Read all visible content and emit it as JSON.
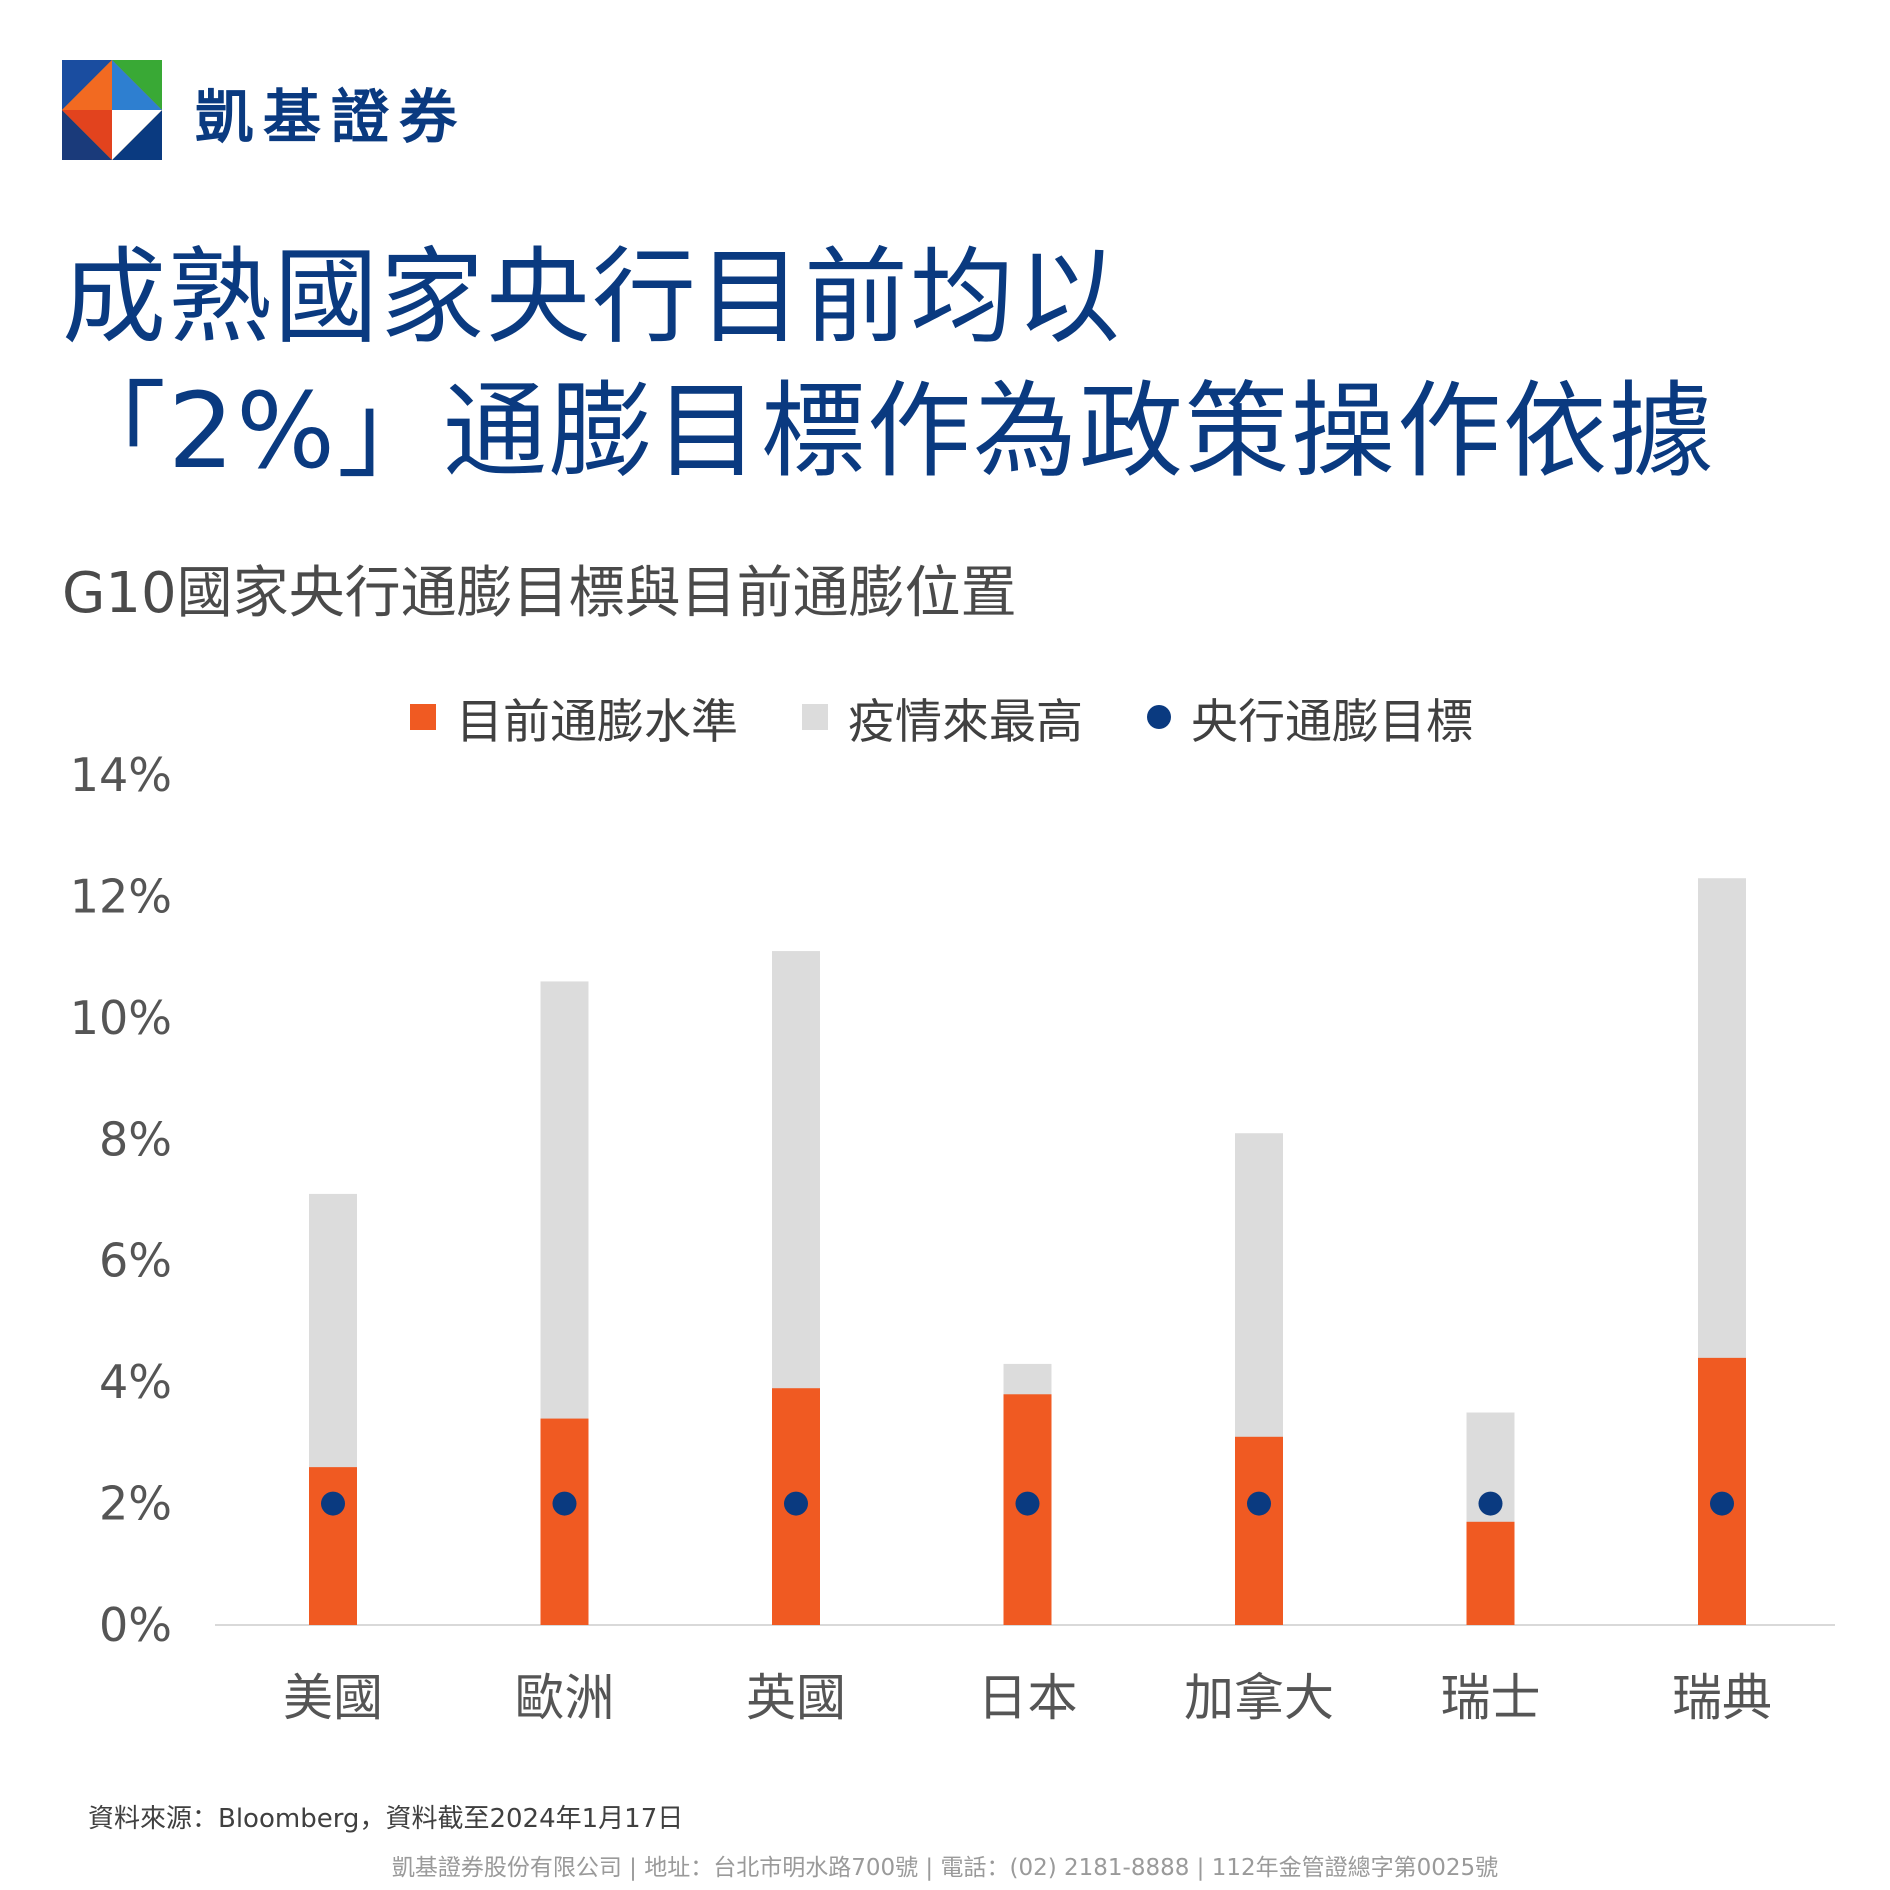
{
  "brand": {
    "logo_icon": "kgi-diamond-logo-icon",
    "name": "凱基證券"
  },
  "title": {
    "line1": "成熟國家央行目前均以",
    "line2": "「2%」通膨目標作為政策操作依據"
  },
  "colors": {
    "title": "#0a3a80",
    "current": "#f05a22",
    "peak": "#dcdcdc",
    "target": "#0a3a80"
  },
  "chart_data": {
    "type": "bar",
    "title": "G10國家央行通膨目標與目前通膨位置",
    "categories": [
      "美國",
      "歐洲",
      "英國",
      "日本",
      "加拿大",
      "瑞士",
      "瑞典"
    ],
    "series": [
      {
        "name": "目前通膨水準",
        "kind": "bar",
        "color": "#f05a22",
        "values": [
          2.6,
          3.4,
          3.9,
          3.8,
          3.1,
          1.7,
          4.4
        ]
      },
      {
        "name": "疫情來最高",
        "kind": "bar",
        "color": "#dcdcdc",
        "values": [
          7.1,
          10.6,
          11.1,
          4.3,
          8.1,
          3.5,
          12.3
        ]
      },
      {
        "name": "央行通膨目標",
        "kind": "dot",
        "color": "#0a3a80",
        "values": [
          2,
          2,
          2,
          2,
          2,
          2,
          2
        ]
      }
    ],
    "yticks": [
      "0%",
      "2%",
      "4%",
      "6%",
      "8%",
      "10%",
      "12%",
      "14%"
    ],
    "ylim": [
      0,
      14
    ],
    "grid": false,
    "legend_position": "top"
  },
  "source": "資料來源：Bloomberg，資料截至2024年1月17日",
  "footer": "凱基證券股份有限公司 | 地址：台北市明水路700號 | 電話：(02) 2181-8888 | 112年金管證總字第0025號"
}
